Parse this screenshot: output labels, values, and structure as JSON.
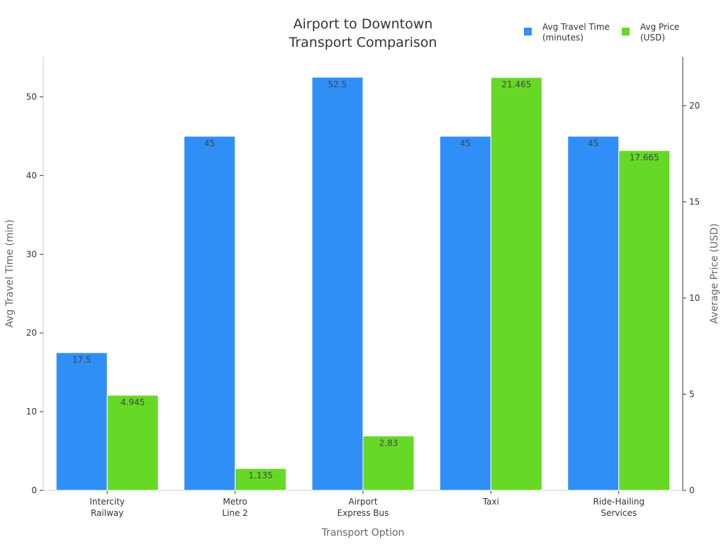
{
  "chart_data": {
    "type": "bar",
    "title": [
      "Airport to Downtown",
      "Transport Comparison"
    ],
    "xlabel": "Transport Option",
    "ylabel_left": "Avg Travel Time (min)",
    "ylabel_right": "Average Price (USD)",
    "categories": [
      [
        "Intercity",
        "Railway"
      ],
      [
        "Metro",
        "Line 2"
      ],
      [
        "Airport",
        "Express Bus"
      ],
      [
        "Taxi"
      ],
      [
        "Ride-Hailing",
        "Services"
      ]
    ],
    "series": [
      {
        "name": [
          "Avg Travel Time",
          "(minutes)"
        ],
        "axis": "left",
        "color": "#2f8ff7",
        "values": [
          17.5,
          45,
          52.5,
          45,
          45
        ],
        "labels": [
          "17.5",
          "45",
          "52.5",
          "45",
          "45"
        ]
      },
      {
        "name": [
          "Avg Price",
          "(USD)"
        ],
        "axis": "right",
        "color": "#66d926",
        "values": [
          4.945,
          1.135,
          2.83,
          21.465,
          17.665
        ],
        "labels": [
          "4.945",
          "1.135",
          "2.83",
          "21.465",
          "17.665"
        ]
      }
    ],
    "ylim_left": [
      0,
      55.1
    ],
    "yticks_left": [
      0,
      10,
      20,
      30,
      40,
      50
    ],
    "ylim_right": [
      0,
      22.54
    ],
    "yticks_right": [
      0,
      5,
      10,
      15,
      20
    ],
    "grid": false,
    "legend": "top-right"
  }
}
